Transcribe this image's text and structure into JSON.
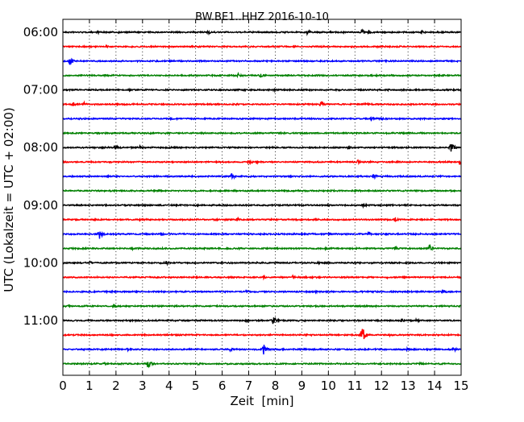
{
  "chart_data": {
    "type": "line",
    "title": "BW.BE1..HHZ 2016-10-10",
    "xlabel": "Zeit  [min]",
    "ylabel": "UTC (Lokalzeit = UTC + 02:00)",
    "xlim": [
      0,
      15
    ],
    "x_ticks": [
      0,
      1,
      2,
      3,
      4,
      5,
      6,
      7,
      8,
      9,
      10,
      11,
      12,
      13,
      14,
      15
    ],
    "y_tick_labels": [
      "06:00",
      "07:00",
      "08:00",
      "09:00",
      "10:00",
      "11:00"
    ],
    "grid": "vertical dotted",
    "trace_colors": [
      "#000000",
      "#ff0000",
      "#0000ff",
      "#008000"
    ],
    "traces": [
      {
        "start": "06:00",
        "color": "#000000",
        "events": [
          [
            1.3,
            0.25
          ],
          [
            5.45,
            0.35
          ],
          [
            9.2,
            0.45
          ],
          [
            11.25,
            0.55
          ],
          [
            11.5,
            0.4
          ],
          [
            13.5,
            0.25
          ]
        ]
      },
      {
        "start": "06:15",
        "color": "#ff0000",
        "events": [
          [
            1.6,
            0.3
          ],
          [
            7.9,
            0.15
          ]
        ]
      },
      {
        "start": "06:30",
        "color": "#0000ff",
        "events": [
          [
            0.25,
            0.6
          ],
          [
            4.0,
            0.15
          ]
        ]
      },
      {
        "start": "06:45",
        "color": "#008000",
        "events": [
          [
            6.6,
            0.35
          ],
          [
            7.4,
            0.5
          ],
          [
            11.5,
            0.15
          ]
        ]
      },
      {
        "start": "07:00",
        "color": "#000000",
        "events": [
          [
            2.5,
            0.15
          ],
          [
            7.95,
            0.3
          ]
        ]
      },
      {
        "start": "07:15",
        "color": "#ff0000",
        "events": [
          [
            0.35,
            0.35
          ],
          [
            0.8,
            0.3
          ],
          [
            6.5,
            0.25
          ],
          [
            9.7,
            0.5
          ],
          [
            11.35,
            0.35
          ]
        ]
      },
      {
        "start": "07:30",
        "color": "#0000ff",
        "events": [
          [
            4.1,
            0.2
          ],
          [
            11.6,
            0.3
          ],
          [
            12.0,
            0.25
          ]
        ]
      },
      {
        "start": "07:45",
        "color": "#008000",
        "events": [
          [
            4.0,
            0.12
          ],
          [
            8.2,
            0.15
          ]
        ]
      },
      {
        "start": "08:00",
        "color": "#000000",
        "events": [
          [
            1.95,
            0.45
          ],
          [
            2.9,
            0.3
          ],
          [
            10.75,
            0.35
          ],
          [
            14.6,
            0.85
          ]
        ]
      },
      {
        "start": "08:15",
        "color": "#ff0000",
        "events": [
          [
            7.0,
            0.4
          ],
          [
            7.3,
            0.3
          ],
          [
            11.1,
            0.35
          ],
          [
            14.95,
            0.55
          ]
        ]
      },
      {
        "start": "08:30",
        "color": "#0000ff",
        "events": [
          [
            1.0,
            0.2
          ],
          [
            3.5,
            0.2
          ],
          [
            6.35,
            0.45
          ],
          [
            8.5,
            0.25
          ],
          [
            11.7,
            0.45
          ]
        ]
      },
      {
        "start": "08:45",
        "color": "#008000",
        "events": [
          [
            3.0,
            0.15
          ],
          [
            9.2,
            0.15
          ]
        ]
      },
      {
        "start": "09:00",
        "color": "#000000",
        "events": [
          [
            4.1,
            0.15
          ],
          [
            11.3,
            0.35
          ]
        ]
      },
      {
        "start": "09:15",
        "color": "#ff0000",
        "events": [
          [
            2.9,
            0.25
          ],
          [
            6.55,
            0.35
          ],
          [
            12.5,
            0.35
          ]
        ]
      },
      {
        "start": "09:30",
        "color": "#0000ff",
        "events": [
          [
            1.35,
            1.0
          ],
          [
            3.7,
            0.35
          ],
          [
            11.5,
            0.35
          ],
          [
            12.15,
            0.25
          ]
        ]
      },
      {
        "start": "09:45",
        "color": "#008000",
        "events": [
          [
            2.6,
            0.25
          ],
          [
            6.6,
            0.2
          ],
          [
            9.9,
            0.25
          ],
          [
            12.5,
            0.6
          ],
          [
            13.8,
            0.6
          ]
        ]
      },
      {
        "start": "10:00",
        "color": "#000000",
        "events": [
          [
            1.0,
            0.3
          ],
          [
            3.9,
            0.3
          ],
          [
            9.6,
            0.2
          ]
        ]
      },
      {
        "start": "10:15",
        "color": "#ff0000",
        "events": [
          [
            7.55,
            0.3
          ],
          [
            8.65,
            0.3
          ],
          [
            12.2,
            0.2
          ]
        ]
      },
      {
        "start": "10:30",
        "color": "#0000ff",
        "events": [
          [
            6.9,
            0.25
          ],
          [
            9.5,
            0.25
          ],
          [
            14.3,
            0.45
          ]
        ]
      },
      {
        "start": "10:45",
        "color": "#008000",
        "events": [
          [
            0.2,
            0.25
          ],
          [
            1.9,
            0.45
          ]
        ]
      },
      {
        "start": "11:00",
        "color": "#000000",
        "events": [
          [
            6.9,
            0.3
          ],
          [
            7.9,
            0.75
          ],
          [
            12.75,
            0.35
          ],
          [
            13.3,
            0.3
          ]
        ]
      },
      {
        "start": "11:15",
        "color": "#ff0000",
        "events": [
          [
            11.25,
            1.6
          ],
          [
            12.3,
            0.2
          ]
        ]
      },
      {
        "start": "11:30",
        "color": "#0000ff",
        "events": [
          [
            2.4,
            0.3
          ],
          [
            6.3,
            0.3
          ],
          [
            7.55,
            0.85
          ],
          [
            12.95,
            0.3
          ],
          [
            14.7,
            0.45
          ]
        ]
      },
      {
        "start": "11:45",
        "color": "#008000",
        "events": [
          [
            1.55,
            0.25
          ],
          [
            3.2,
            0.8
          ],
          [
            5.1,
            0.25
          ],
          [
            13.45,
            0.3
          ]
        ]
      }
    ]
  }
}
